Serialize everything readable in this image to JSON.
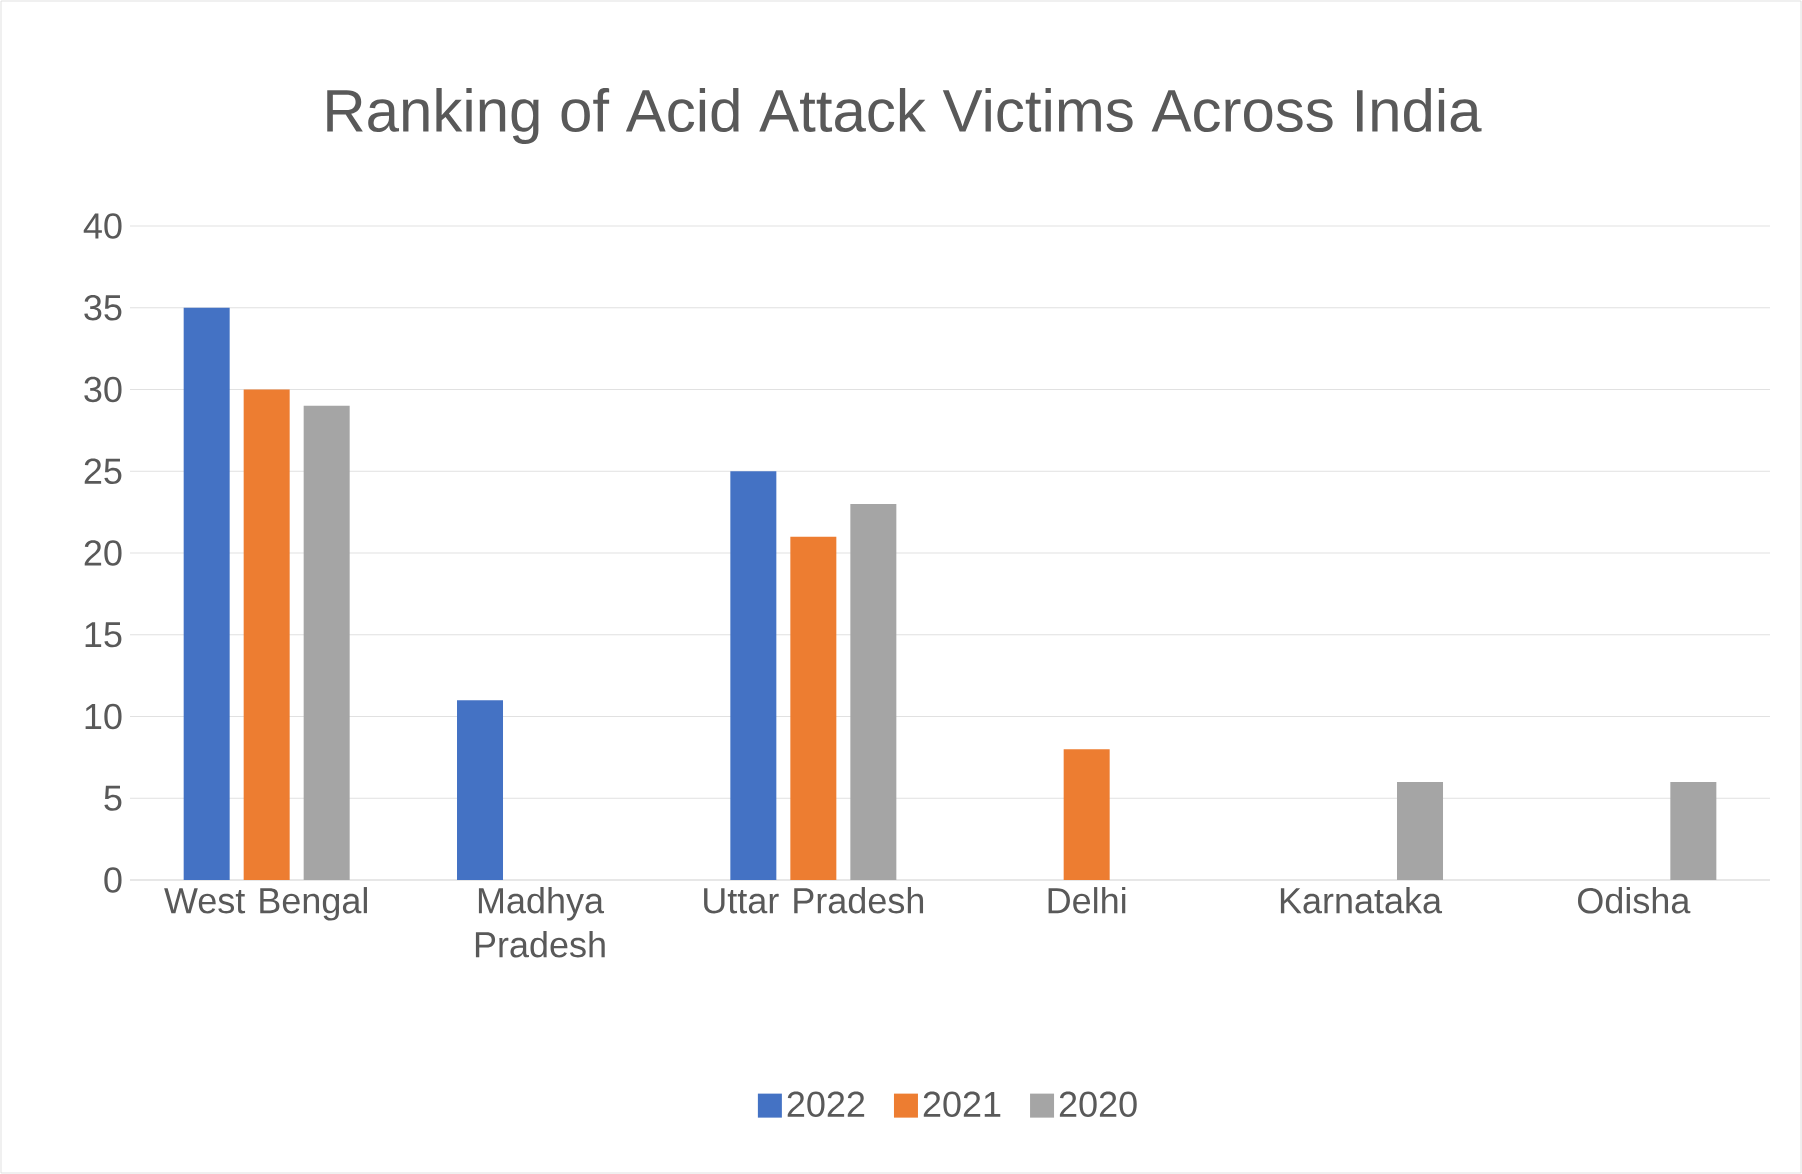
{
  "chart_data": {
    "type": "bar",
    "title": "Ranking of Acid Attack Victims Across India",
    "categories": [
      "West Bengal",
      "Madhya Pradesh",
      "Uttar Pradesh",
      "Delhi",
      "Karnataka",
      "Odisha"
    ],
    "series": [
      {
        "name": "2022",
        "color": "#4472c4",
        "values": [
          35,
          11,
          25,
          null,
          null,
          null
        ]
      },
      {
        "name": "2021",
        "color": "#ed7d31",
        "values": [
          30,
          null,
          21,
          8,
          null,
          null
        ]
      },
      {
        "name": "2020",
        "color": "#a5a5a5",
        "values": [
          29,
          null,
          23,
          null,
          6,
          6
        ]
      }
    ],
    "ylim": [
      0,
      40
    ],
    "yticks": [
      0,
      5,
      10,
      15,
      20,
      25,
      30,
      35,
      40
    ],
    "grid": "y",
    "legend": "bottom"
  }
}
